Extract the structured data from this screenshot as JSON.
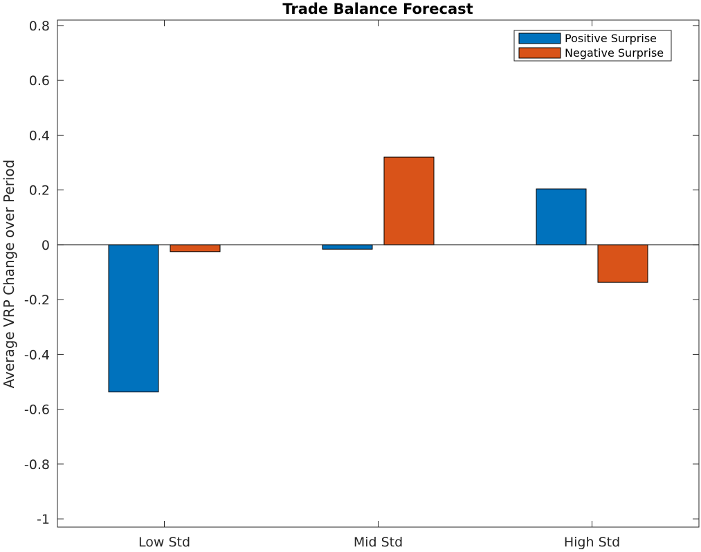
{
  "chart_data": {
    "type": "bar",
    "title": "Trade Balance Forecast",
    "xlabel": "",
    "ylabel": "Average VRP Change over Period",
    "categories": [
      "Low Std",
      "Mid Std",
      "High Std"
    ],
    "series": [
      {
        "name": "Positive Surprise",
        "color": "#0072BD",
        "values": [
          -0.537,
          -0.016,
          0.204
        ]
      },
      {
        "name": "Negative Surprise",
        "color": "#D95319",
        "values": [
          -0.025,
          0.32,
          -0.137
        ]
      }
    ],
    "ylim": [
      -1.03,
      0.82
    ],
    "yticks": [
      0.8,
      0.6,
      0.4,
      0.2,
      0,
      -0.2,
      -0.4,
      -0.6,
      -0.8,
      -1
    ],
    "ytick_labels": [
      "0.8",
      "0.6",
      "0.4",
      "0.2",
      "0",
      "-0.2",
      "-0.4",
      "-0.6",
      "-0.8",
      "-1"
    ],
    "grid": false,
    "legend_position": "top-right"
  }
}
